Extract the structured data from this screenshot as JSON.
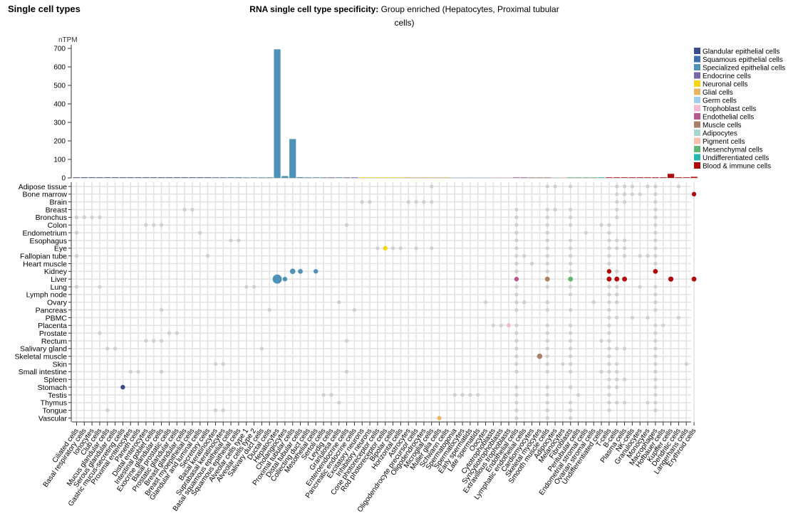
{
  "header": {
    "section_title": "Single cell types",
    "title_bold": "RNA single cell type specificity:",
    "title_rest": " Group enriched (Hepatocytes, Proximal tubular cells)"
  },
  "legend": [
    {
      "name": "Glandular epithelial cells",
      "color": "#3b4a8c"
    },
    {
      "name": "Squamous epithelial cells",
      "color": "#3e6eae"
    },
    {
      "name": "Specialized epithelial cells",
      "color": "#4f92b8"
    },
    {
      "name": "Endocrine cells",
      "color": "#7b65a6"
    },
    {
      "name": "Neuronal cells",
      "color": "#f6d50f"
    },
    {
      "name": "Glial cells",
      "color": "#e7b661"
    },
    {
      "name": "Germ cells",
      "color": "#9fcfee"
    },
    {
      "name": "Trophoblast cells",
      "color": "#f5b9d3"
    },
    {
      "name": "Endothelial cells",
      "color": "#b4588d"
    },
    {
      "name": "Muscle cells",
      "color": "#a9816a"
    },
    {
      "name": "Adipocytes",
      "color": "#a6d6cf"
    },
    {
      "name": "Pigment cells",
      "color": "#f8c1ad"
    },
    {
      "name": "Mesenchymal cells",
      "color": "#5fb871"
    },
    {
      "name": "Undifferentiated cells",
      "color": "#26b8b0"
    },
    {
      "name": "Blood & immune cells",
      "color": "#b10a0a"
    }
  ],
  "chart_data": {
    "type": "bar",
    "ylabel": "nTPM",
    "ylim": [
      0,
      700
    ],
    "yticks": [
      0,
      100,
      200,
      300,
      400,
      500,
      600,
      700
    ],
    "categories": [
      "Ciliated cells",
      "Basal respiratory cells",
      "Ionocytes",
      "Club cells",
      "Mucus glandular cells",
      "Serous glandular cells",
      "Gastric mucus-secreting cells",
      "Proximal enterocytes",
      "Paneth cells",
      "Distal enterocytes",
      "Intestinal goblet cells",
      "Exocrine glandular cells",
      "Basal prostatic cells",
      "Prostatic glandular cells",
      "Breast glandular cells",
      "Breast myoepithelial cells",
      "Glandular and luminal cells",
      "Secretory cells",
      "Basal keratinocytes",
      "Suprabasal keratinocytes",
      "Basal squamous epithelial cells",
      "Squamous epithelial cells",
      "Alveolar cells type 1",
      "Alveolar cells type 2",
      "Salivary duct cells",
      "Ductal cells",
      "Hepatocytes",
      "Cholangiocytes",
      "Proximal tubular cells",
      "Distal tubular cells",
      "Collecting duct cells",
      "Mesothelial cells",
      "Sertoli cells",
      "Leydig cells",
      "Granulosa cells",
      "Enteroendocrine cells",
      "Pancreatic endocrine cells",
      "Excitatory neurons",
      "Inhibitory neurons",
      "Cone photoreceptor cells",
      "Rod photoreceptor cells",
      "Bipolar cells",
      "Horizontal cells",
      "Astrocytes",
      "Oligodendrocyte precursor cells",
      "Oligodendrocytes",
      "Microglial cells",
      "Muller glia cells",
      "Schwann cells",
      "Spermatogonia",
      "Spermatocytes",
      "Early spermatids",
      "Late spermatids",
      "Oocytes",
      "Cytotrophoblasts",
      "Syncytiotrophoblasts",
      "Extravillous trophoblasts",
      "Endothelial cells",
      "Lymphatic endothelial cells",
      "Cardiomyocytes",
      "Skeletal myocytes",
      "Smooth muscle cells",
      "Adipocytes",
      "Melanocytes",
      "Fibroblasts",
      "Peritubular cells",
      "Endometrial stromal cells",
      "Ovarian stromal cells",
      "Undifferentiated cells",
      "T-cells",
      "B-cells",
      "Plasma cells",
      "NK-cells",
      "Granulocytes",
      "Monocytes",
      "Macrophages",
      "Hofbauer cells",
      "Kupffer cells",
      "Dendritic cells",
      "Langerhans cells",
      "Erythroid cells"
    ],
    "values": [
      0,
      0,
      0,
      0,
      0,
      0,
      1,
      0,
      0,
      0,
      0,
      0,
      0,
      0,
      0,
      0,
      0,
      0,
      0,
      0,
      0,
      0,
      0,
      0,
      0,
      0,
      695,
      10,
      210,
      4,
      3,
      0,
      0,
      0,
      0,
      0,
      0,
      0,
      0,
      0,
      0,
      0,
      0,
      0,
      0,
      0,
      0,
      0,
      0,
      0,
      0,
      0,
      0,
      0,
      0,
      0,
      0,
      0,
      0,
      0,
      0,
      0,
      0,
      0,
      0,
      0,
      0,
      0,
      0,
      1,
      2,
      1,
      0,
      0,
      0,
      0,
      0,
      22,
      1,
      0,
      6
    ],
    "bar_groups": [
      0,
      0,
      0,
      0,
      0,
      0,
      0,
      0,
      0,
      0,
      0,
      0,
      0,
      0,
      0,
      0,
      0,
      0,
      1,
      1,
      1,
      1,
      2,
      2,
      2,
      2,
      2,
      2,
      2,
      2,
      2,
      2,
      2,
      3,
      2,
      3,
      3,
      4,
      4,
      4,
      4,
      4,
      4,
      5,
      5,
      5,
      5,
      5,
      5,
      6,
      6,
      6,
      6,
      6,
      7,
      7,
      7,
      8,
      8,
      9,
      9,
      9,
      10,
      11,
      12,
      12,
      12,
      12,
      13,
      14,
      14,
      14,
      14,
      14,
      14,
      14,
      14,
      14,
      14,
      14,
      14
    ]
  },
  "tissue_dot_plot": {
    "type": "scatter",
    "tissues": [
      "Adipose tissue",
      "Bone marrow",
      "Brain",
      "Breast",
      "Bronchus",
      "Colon",
      "Endometrium",
      "Esophagus",
      "Eye",
      "Fallopian tube",
      "Heart muscle",
      "Kidney",
      "Liver",
      "Lung",
      "Lymph node",
      "Ovary",
      "Pancreas",
      "PBMC",
      "Placenta",
      "Prostate",
      "Rectum",
      "Salivary gland",
      "Skeletal muscle",
      "Skin",
      "Small intestine",
      "Spleen",
      "Stomach",
      "Testis",
      "Thymus",
      "Tongue",
      "Vascular"
    ],
    "colored_points": [
      {
        "tissue": "Liver",
        "cell": "Hepatocytes",
        "size": 6.5,
        "color": "#4f92b8"
      },
      {
        "tissue": "Liver",
        "cell": "Cholangiocytes",
        "size": 3.2,
        "color": "#4f92b8"
      },
      {
        "tissue": "Kidney",
        "cell": "Proximal tubular cells",
        "size": 3.8,
        "color": "#4f92b8"
      },
      {
        "tissue": "Kidney",
        "cell": "Distal tubular cells",
        "size": 3.4,
        "color": "#4f92b8"
      },
      {
        "tissue": "Kidney",
        "cell": "Mesothelial cells",
        "size": 3.2,
        "color": "#4f92b8"
      },
      {
        "tissue": "Stomach",
        "cell": "Gastric mucus-secreting cells",
        "size": 3.2,
        "color": "#3b4a8c"
      },
      {
        "tissue": "Eye",
        "cell": "Rod photoreceptor cells",
        "size": 3.2,
        "color": "#f6d50f"
      },
      {
        "tissue": "Vascular",
        "cell": "Muller glia cells",
        "size": 3.0,
        "color": "#e7b661"
      },
      {
        "tissue": "Placenta",
        "cell": "Extravillous trophoblasts",
        "size": 3.0,
        "color": "#f5b9d3"
      },
      {
        "tissue": "Liver",
        "cell": "Endothelial cells",
        "size": 3.2,
        "color": "#b4588d"
      },
      {
        "tissue": "Liver",
        "cell": "Smooth muscle cells",
        "size": 3.4,
        "color": "#a9816a"
      },
      {
        "tissue": "Skeletal muscle",
        "cell": "Skeletal myocytes",
        "size": 3.8,
        "color": "#a9816a"
      },
      {
        "tissue": "Liver",
        "cell": "Fibroblasts",
        "size": 3.4,
        "color": "#5fb871"
      },
      {
        "tissue": "Kidney",
        "cell": "T-cells",
        "size": 3.2,
        "color": "#b10a0a"
      },
      {
        "tissue": "Liver",
        "cell": "T-cells",
        "size": 3.4,
        "color": "#b10a0a"
      },
      {
        "tissue": "Liver",
        "cell": "B-cells",
        "size": 3.4,
        "color": "#b10a0a"
      },
      {
        "tissue": "Liver",
        "cell": "Plasma cells",
        "size": 3.4,
        "color": "#b10a0a"
      },
      {
        "tissue": "Kidney",
        "cell": "Macrophages",
        "size": 3.4,
        "color": "#b10a0a"
      },
      {
        "tissue": "Liver",
        "cell": "Kupffer cells",
        "size": 3.6,
        "color": "#b10a0a"
      },
      {
        "tissue": "Liver",
        "cell": "Erythroid cells",
        "size": 3.4,
        "color": "#b10a0a"
      },
      {
        "tissue": "Bone marrow",
        "cell": "Erythroid cells",
        "size": 3.2,
        "color": "#b10a0a"
      }
    ],
    "gray_points": [
      {
        "tissue": "Adipose tissue",
        "cells": [
          "Microglial cells",
          "Smooth muscle cells",
          "Adipocytes",
          "Fibroblasts",
          "B-cells",
          "Plasma cells",
          "NK-cells",
          "Monocytes",
          "Macrophages",
          "Dendritic cells"
        ]
      },
      {
        "tissue": "Bone marrow",
        "cells": [
          "B-cells",
          "Plasma cells",
          "NK-cells",
          "Granulocytes",
          "Macrophages"
        ]
      },
      {
        "tissue": "Brain",
        "cells": [
          "Excitatory neurons",
          "Inhibitory neurons",
          "Astrocytes",
          "Oligodendrocyte precursor cells",
          "Oligodendrocytes",
          "Microglial cells",
          "B-cells",
          "Plasma cells",
          "Macrophages"
        ]
      },
      {
        "tissue": "Breast",
        "cells": [
          "Breast glandular cells",
          "Breast myoepithelial cells",
          "Endothelial cells",
          "Smooth muscle cells",
          "Adipocytes",
          "Fibroblasts",
          "B-cells",
          "Macrophages"
        ]
      },
      {
        "tissue": "Bronchus",
        "cells": [
          "Ciliated cells",
          "Basal respiratory cells",
          "Ionocytes",
          "Club cells",
          "Endothelial cells",
          "Smooth muscle cells",
          "Fibroblasts",
          "B-cells",
          "Macrophages"
        ]
      },
      {
        "tissue": "Colon",
        "cells": [
          "Distal enterocytes",
          "Intestinal goblet cells",
          "Exocrine glandular cells",
          "Enteroendocrine cells",
          "Endothelial cells",
          "Smooth muscle cells",
          "Fibroblasts",
          "Undifferentiated cells",
          "T-cells",
          "Macrophages"
        ]
      },
      {
        "tissue": "Endometrium",
        "cells": [
          "Ciliated cells",
          "Glandular and luminal cells",
          "Endothelial cells",
          "Smooth muscle cells",
          "Endometrial stromal cells",
          "T-cells",
          "Macrophages"
        ]
      },
      {
        "tissue": "Esophagus",
        "cells": [
          "Basal squamous epithelial cells",
          "Squamous epithelial cells",
          "Endothelial cells",
          "Smooth muscle cells",
          "Fibroblasts",
          "T-cells",
          "B-cells",
          "Plasma cells",
          "Macrophages"
        ]
      },
      {
        "tissue": "Eye",
        "cells": [
          "Cone photoreceptor cells",
          "Bipolar cells",
          "Horizontal cells",
          "Oligodendrocyte precursor cells",
          "Microglial cells",
          "Endothelial cells",
          "Smooth muscle cells",
          "Fibroblasts",
          "T-cells",
          "B-cells",
          "Plasma cells",
          "Macrophages"
        ]
      },
      {
        "tissue": "Fallopian tube",
        "cells": [
          "Ciliated cells",
          "Secretory cells",
          "Endothelial cells",
          "Lymphatic endothelial cells",
          "Smooth muscle cells",
          "Fibroblasts",
          "T-cells",
          "Plasma cells",
          "Granulocytes",
          "Monocytes",
          "Macrophages"
        ]
      },
      {
        "tissue": "Heart muscle",
        "cells": [
          "Endothelial cells",
          "Cardiomyocytes",
          "Smooth muscle cells",
          "Fibroblasts",
          "T-cells",
          "Macrophages"
        ]
      },
      {
        "tissue": "Kidney",
        "cells": [
          "Endothelial cells",
          "Smooth muscle cells",
          "Fibroblasts",
          "B-cells"
        ]
      },
      {
        "tissue": "Lung",
        "cells": [
          "Ciliated cells",
          "Club cells",
          "Alveolar cells type 1",
          "Alveolar cells type 2",
          "Endothelial cells",
          "Smooth muscle cells",
          "Fibroblasts",
          "T-cells",
          "B-cells",
          "Granulocytes",
          "Macrophages"
        ]
      },
      {
        "tissue": "Lymph node",
        "cells": [
          "Endothelial cells",
          "Fibroblasts",
          "T-cells",
          "B-cells",
          "Macrophages"
        ]
      },
      {
        "tissue": "Ovary",
        "cells": [
          "Granulosa cells",
          "Oocytes",
          "Endothelial cells",
          "Lymphatic endothelial cells",
          "Smooth muscle cells",
          "Ovarian stromal cells",
          "T-cells",
          "B-cells",
          "Macrophages"
        ]
      },
      {
        "tissue": "Pancreas",
        "cells": [
          "Exocrine glandular cells",
          "Ductal cells",
          "Pancreatic endocrine cells",
          "Endothelial cells",
          "Smooth muscle cells",
          "Fibroblasts",
          "T-cells",
          "Macrophages"
        ]
      },
      {
        "tissue": "PBMC",
        "cells": [
          "T-cells",
          "B-cells",
          "NK-cells",
          "Monocytes",
          "Dendritic cells"
        ]
      },
      {
        "tissue": "Placenta",
        "cells": [
          "Cytotrophoblasts",
          "Syncytiotrophoblasts",
          "Endothelial cells",
          "Smooth muscle cells",
          "Fibroblasts",
          "T-cells",
          "Macrophages",
          "Hofbauer cells"
        ]
      },
      {
        "tissue": "Prostate",
        "cells": [
          "Club cells",
          "Basal prostatic cells",
          "Prostatic glandular cells",
          "Endothelial cells",
          "Smooth muscle cells",
          "Fibroblasts",
          "T-cells",
          "Macrophages"
        ]
      },
      {
        "tissue": "Rectum",
        "cells": [
          "Distal enterocytes",
          "Intestinal goblet cells",
          "Exocrine glandular cells",
          "Enteroendocrine cells",
          "Endothelial cells",
          "Smooth muscle cells",
          "Fibroblasts",
          "Undifferentiated cells",
          "T-cells",
          "Macrophages"
        ]
      },
      {
        "tissue": "Salivary gland",
        "cells": [
          "Mucus glandular cells",
          "Serous glandular cells",
          "Salivary duct cells",
          "Endothelial cells",
          "Smooth muscle cells",
          "Fibroblasts",
          "T-cells",
          "B-cells",
          "Plasma cells",
          "Macrophages"
        ]
      },
      {
        "tissue": "Skeletal muscle",
        "cells": [
          "Endothelial cells",
          "Smooth muscle cells",
          "Fibroblasts",
          "T-cells",
          "Macrophages"
        ]
      },
      {
        "tissue": "Skin",
        "cells": [
          "Basal keratinocytes",
          "Suprabasal keratinocytes",
          "Endothelial cells",
          "Smooth muscle cells",
          "Melanocytes",
          "Fibroblasts",
          "T-cells",
          "B-cells",
          "Macrophages",
          "Langerhans cells"
        ]
      },
      {
        "tissue": "Small intestine",
        "cells": [
          "Proximal enterocytes",
          "Paneth cells",
          "Exocrine glandular cells",
          "Enteroendocrine cells",
          "Endothelial cells",
          "Smooth muscle cells",
          "Fibroblasts",
          "Undifferentiated cells",
          "T-cells",
          "B-cells",
          "Macrophages"
        ]
      },
      {
        "tissue": "Spleen",
        "cells": [
          "T-cells",
          "B-cells",
          "Plasma cells",
          "Macrophages"
        ]
      },
      {
        "tissue": "Stomach",
        "cells": [
          "Endothelial cells",
          "Smooth muscle cells",
          "Fibroblasts",
          "T-cells",
          "B-cells",
          "Macrophages"
        ]
      },
      {
        "tissue": "Testis",
        "cells": [
          "Leydig cells",
          "Sertoli cells",
          "Spermatogonia",
          "Spermatocytes",
          "Early spermatids",
          "Late spermatids",
          "Endothelial cells",
          "Smooth muscle cells",
          "Peritubular cells",
          "T-cells",
          "Macrophages"
        ]
      },
      {
        "tissue": "Thymus",
        "cells": [
          "Granulosa cells",
          "Endothelial cells",
          "Smooth muscle cells",
          "Fibroblasts",
          "T-cells",
          "B-cells",
          "Plasma cells",
          "Monocytes",
          "Macrophages"
        ]
      },
      {
        "tissue": "Tongue",
        "cells": [
          "Mucus glandular cells",
          "Basal keratinocytes",
          "Suprabasal keratinocytes",
          "Endothelial cells",
          "Smooth muscle cells",
          "Fibroblasts",
          "T-cells",
          "Macrophages"
        ]
      },
      {
        "tissue": "Vascular",
        "cells": [
          "Endothelial cells",
          "Smooth muscle cells",
          "Fibroblasts"
        ]
      }
    ]
  }
}
